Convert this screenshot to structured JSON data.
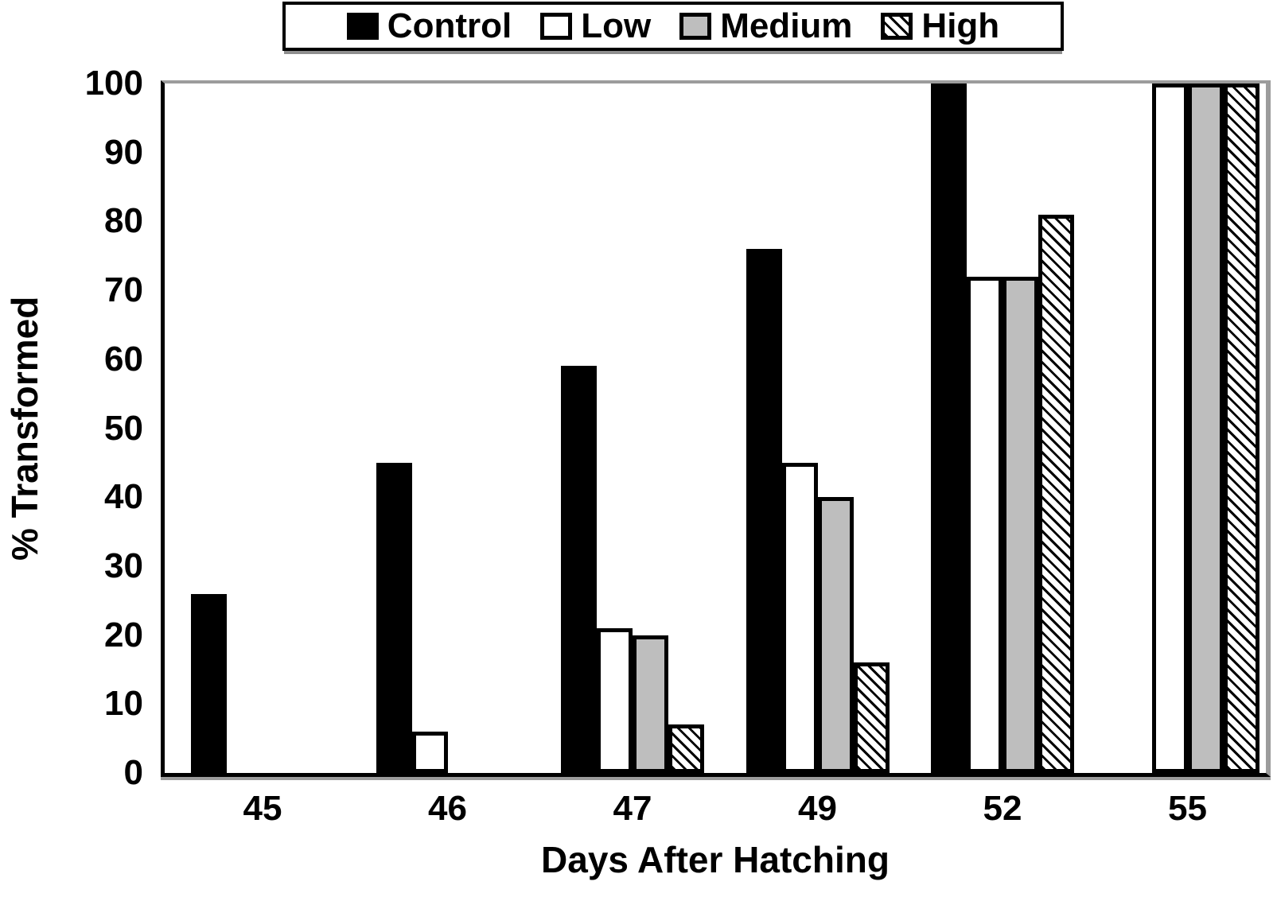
{
  "colors": {
    "control_fill": "#000000",
    "low_fill": "#ffffff",
    "medium_fill": "#bebebe",
    "high_fill_pattern": "black-diagonal-hatch-on-white",
    "bar_border": "#000000",
    "axis_left_bottom": "#000000",
    "frame_top_right": "#9c9c9c",
    "background": "#ffffff"
  },
  "chart_data": {
    "type": "bar",
    "title": "",
    "xlabel": "Days After Hatching",
    "ylabel": "% Transformed",
    "categories": [
      "45",
      "46",
      "47",
      "49",
      "52",
      "55"
    ],
    "series": [
      {
        "name": "Control",
        "style": "control",
        "values": [
          26,
          45,
          59,
          76,
          100,
          null
        ]
      },
      {
        "name": "Low",
        "style": "low",
        "values": [
          0,
          6,
          21,
          45,
          72,
          100
        ]
      },
      {
        "name": "Medium",
        "style": "medium",
        "values": [
          0,
          0,
          20,
          40,
          72,
          100
        ]
      },
      {
        "name": "High",
        "style": "high",
        "values": [
          0,
          0,
          7,
          16,
          81,
          100
        ]
      }
    ],
    "ylim": [
      0,
      100
    ],
    "yticks": [
      0,
      10,
      20,
      30,
      40,
      50,
      60,
      70,
      80,
      90,
      100
    ],
    "grid": false,
    "legend_position": "top-center"
  }
}
